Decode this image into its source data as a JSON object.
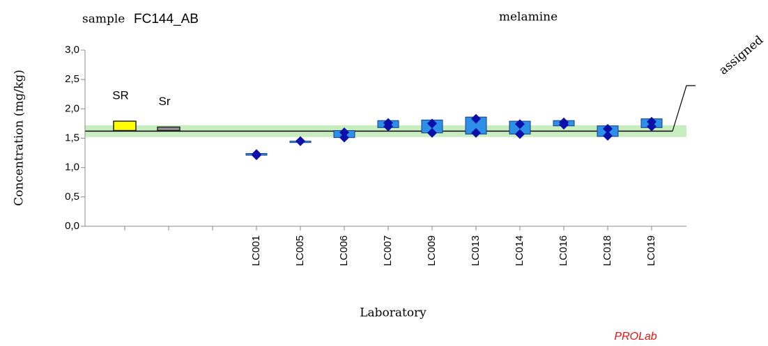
{
  "chart_data": {
    "type": "box",
    "sample_prefix": "sample",
    "sample": "FC144_AB",
    "analyte": "melamine",
    "assigned_label": "assigned",
    "y_label": "Concentration (mg/kg)",
    "x_label": "Laboratory",
    "brand": "PROLab",
    "ylim": [
      0,
      3
    ],
    "yticks": [
      {
        "value": 0,
        "label": "0,0"
      },
      {
        "value": 0.5,
        "label": "0,5"
      },
      {
        "value": 1,
        "label": "1,0"
      },
      {
        "value": 1.5,
        "label": "1,5"
      },
      {
        "value": 2,
        "label": "2,0"
      },
      {
        "value": 2.5,
        "label": "2,5"
      },
      {
        "value": 3,
        "label": "3,0"
      }
    ],
    "assigned_value": 1.62,
    "assigned_low": 1.52,
    "assigned_high": 1.72,
    "band_color": "#c8eec0",
    "precision_boxes": [
      {
        "label": "SR",
        "low": 1.63,
        "high": 1.79,
        "color": "#ffff00"
      },
      {
        "label": "Sr",
        "low": 1.63,
        "high": 1.69,
        "color": "#909090"
      }
    ],
    "categories": [
      null,
      null,
      null,
      "LC001",
      "LC005",
      "LC006",
      "LC007",
      "LC009",
      "LC013",
      "LC014",
      "LC016",
      "LC018",
      "LC019"
    ],
    "box_low": [
      null,
      null,
      null,
      1.21,
      1.44,
      1.51,
      1.68,
      1.59,
      1.57,
      1.57,
      1.71,
      1.53,
      1.68
    ],
    "box_high": [
      null,
      null,
      null,
      1.24,
      1.45,
      1.63,
      1.8,
      1.81,
      1.86,
      1.79,
      1.8,
      1.71,
      1.83
    ],
    "values_1": [
      null,
      null,
      null,
      1.23,
      1.45,
      1.6,
      1.76,
      1.75,
      1.83,
      1.74,
      1.77,
      1.66,
      1.78
    ],
    "values_2": [
      null,
      null,
      null,
      1.21,
      1.45,
      1.51,
      1.7,
      1.59,
      1.59,
      1.57,
      1.73,
      1.54,
      1.7
    ],
    "box_color": "#2e8fe8",
    "point_color": "#0b10a8"
  }
}
